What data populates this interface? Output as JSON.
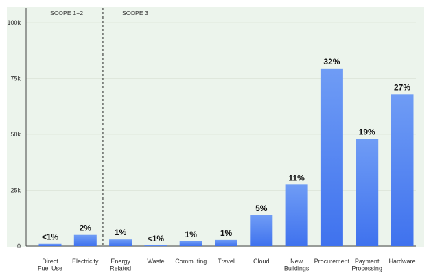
{
  "chart_data": {
    "type": "bar",
    "title": "",
    "xlabel": "",
    "ylabel": "",
    "ylim": [
      0,
      100000
    ],
    "yticks": [
      0,
      25000,
      50000,
      75000,
      100000
    ],
    "ytick_labels": [
      "0",
      "25k",
      "50k",
      "75k",
      "100k"
    ],
    "grid": true,
    "categories": [
      "Direct\nFuel Use",
      "Electricity",
      "Energy\nRelated",
      "Waste",
      "Commuting",
      "Travel",
      "Cloud",
      "New\nBuildings",
      "Procurement",
      "Payment\nProcessing",
      "Hardware"
    ],
    "values": [
      1000,
      5000,
      3000,
      300,
      2200,
      2800,
      13800,
      27500,
      79500,
      48000,
      68000
    ],
    "data_labels": [
      "<1%",
      "2%",
      "1%",
      "<1%",
      "1%",
      "1%",
      "5%",
      "11%",
      "32%",
      "19%",
      "27%"
    ],
    "groups": [
      {
        "label": "SCOPE 1+2",
        "categories": [
          "Direct\nFuel Use",
          "Electricity"
        ]
      },
      {
        "label": "SCOPE 3",
        "categories": [
          "Energy\nRelated",
          "Waste",
          "Commuting",
          "Travel",
          "Cloud",
          "New\nBuildings",
          "Procurement",
          "Payment\nProcessing",
          "Hardware"
        ]
      }
    ],
    "colors": {
      "bar_top": "#6f9cf5",
      "bar_bottom": "#3f72ee",
      "grid": "#dfe7dc",
      "axis": "#444444"
    }
  }
}
